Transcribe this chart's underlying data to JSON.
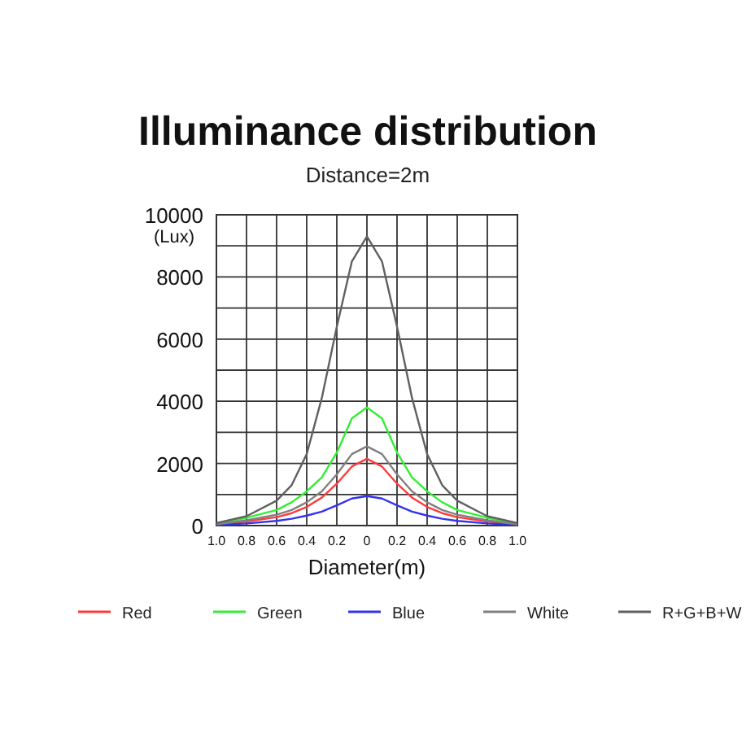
{
  "chart_data": {
    "type": "line",
    "title": "Illuminance distribution",
    "subtitle": "Distance=2m",
    "xlabel": "Diameter(m)",
    "ylabel": "(Lux)",
    "x": [
      -1,
      -0.8,
      -0.6,
      -0.5,
      -0.4,
      -0.3,
      -0.2,
      -0.1,
      0,
      0.1,
      0.2,
      0.3,
      0.4,
      0.5,
      0.6,
      0.8,
      1
    ],
    "series": [
      {
        "name": "Red",
        "color": "#ff3b3b",
        "values": [
          30,
          130,
          270,
          400,
          600,
          900,
          1350,
          1900,
          2150,
          1900,
          1350,
          900,
          600,
          400,
          270,
          130,
          30
        ]
      },
      {
        "name": "Green",
        "color": "#33ee33",
        "values": [
          60,
          250,
          500,
          750,
          1100,
          1550,
          2350,
          3450,
          3800,
          3450,
          2350,
          1550,
          1100,
          750,
          500,
          250,
          60
        ]
      },
      {
        "name": "Blue",
        "color": "#3333ee",
        "values": [
          20,
          70,
          150,
          220,
          320,
          450,
          650,
          870,
          950,
          870,
          650,
          450,
          320,
          220,
          150,
          70,
          20
        ]
      },
      {
        "name": "White",
        "color": "#808080",
        "values": [
          40,
          170,
          350,
          500,
          750,
          1100,
          1650,
          2300,
          2550,
          2300,
          1650,
          1100,
          750,
          500,
          350,
          170,
          40
        ]
      },
      {
        "name": "R+G+B+W",
        "color": "#606060",
        "values": [
          80,
          300,
          800,
          1300,
          2300,
          4100,
          6400,
          8500,
          9300,
          8500,
          6400,
          4100,
          2300,
          1300,
          800,
          300,
          80
        ]
      }
    ],
    "xlim": [
      -1,
      1
    ],
    "xticks": [
      {
        "value": -1,
        "label": "1.0"
      },
      {
        "value": -0.8,
        "label": "0.8"
      },
      {
        "value": -0.6,
        "label": "0.6"
      },
      {
        "value": -0.4,
        "label": "0.4"
      },
      {
        "value": -0.2,
        "label": "0.2"
      },
      0,
      {
        "value": 0.2,
        "label": "0.2"
      },
      {
        "value": 0.4,
        "label": "0.4"
      },
      {
        "value": 0.6,
        "label": "0.6"
      },
      {
        "value": 0.8,
        "label": "0.8"
      },
      {
        "value": 1,
        "label": "1.0"
      }
    ],
    "ylim": [
      0,
      10000
    ],
    "yticks": [
      0,
      2000,
      4000,
      6000,
      8000,
      10000,
      {
        "value": 1000,
        "label": null
      },
      {
        "value": 3000,
        "label": null
      },
      {
        "value": 5000,
        "label": null
      },
      {
        "value": 7000,
        "label": null
      },
      {
        "value": 9000,
        "label": null
      }
    ],
    "grid": true,
    "legend": "bottom",
    "marker": "none",
    "line_style": "solid"
  }
}
